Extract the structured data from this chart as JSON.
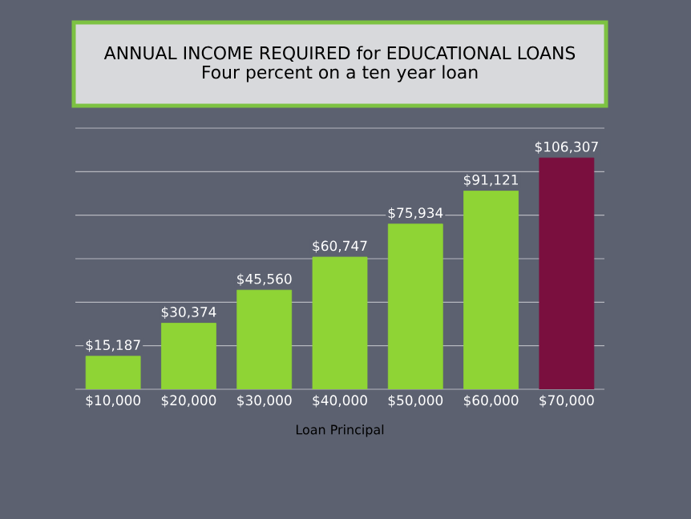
{
  "chart_data": {
    "type": "bar",
    "title": "ANNUAL INCOME REQUIRED for EDUCATIONAL LOANS",
    "subtitle": "Four percent on a ten year loan",
    "xlabel": "Loan Principal",
    "categories": [
      "$10,000",
      "$20,000",
      "$30,000",
      "$40,000",
      "$50,000",
      "$60,000",
      "$70,000"
    ],
    "values": [
      15187,
      30374,
      45560,
      60747,
      75934,
      91121,
      106307
    ],
    "value_labels": [
      "$15,187",
      "$30,374",
      "$45,560",
      "$60,747",
      "$75,934",
      "$91,121",
      "$106,307"
    ],
    "colors": [
      "#8fd435",
      "#8fd435",
      "#8fd435",
      "#8fd435",
      "#8fd435",
      "#8fd435",
      "#7a0f3e"
    ],
    "ylim": [
      0,
      120000
    ],
    "yticks": [
      {
        "value": 0,
        "label": null
      },
      {
        "value": 20000,
        "label": null
      },
      {
        "value": 40000,
        "label": null
      },
      {
        "value": 60000,
        "label": null
      },
      {
        "value": 80000,
        "label": null
      },
      {
        "value": 100000,
        "label": null
      },
      {
        "value": 120000,
        "label": null
      }
    ],
    "grid": "y",
    "tick_labels": "x"
  }
}
